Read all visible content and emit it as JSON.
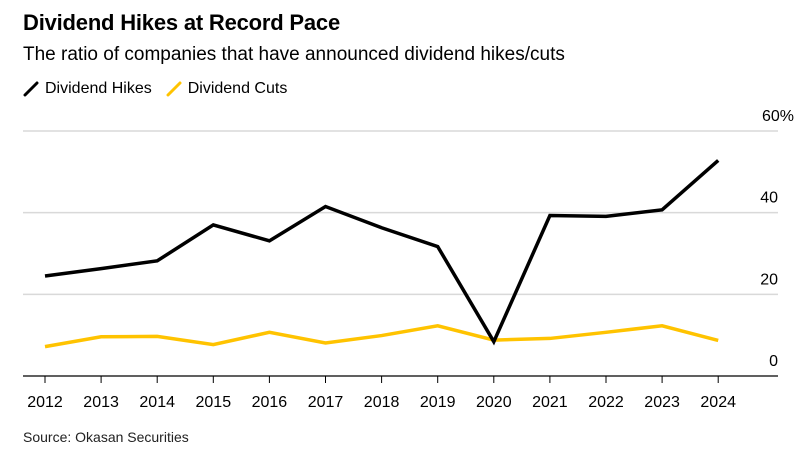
{
  "title": "Dividend Hikes at Record Pace",
  "subtitle": "The ratio of companies that have announced dividend hikes/cuts",
  "source": "Source: Okasan Securities",
  "colors": {
    "hikes": "#000000",
    "cuts": "#ffc300",
    "grid": "#d9d9d9",
    "axis": "#000000"
  },
  "chart_data": {
    "type": "line",
    "title": "Dividend Hikes at Record Pace",
    "subtitle": "The ratio of companies that have announced dividend hikes/cuts",
    "xlabel": "",
    "ylabel": "",
    "categories": [
      "2012",
      "2013",
      "2014",
      "2015",
      "2016",
      "2017",
      "2018",
      "2019",
      "2020",
      "2021",
      "2022",
      "2023",
      "2024"
    ],
    "series": [
      {
        "name": "Dividend Hikes",
        "color": "#000000",
        "values": [
          24.5,
          26.3,
          28.2,
          37.0,
          33.1,
          41.5,
          36.3,
          31.7,
          8.4,
          39.3,
          39.1,
          40.7,
          52.8
        ]
      },
      {
        "name": "Dividend Cuts",
        "color": "#ffc300",
        "values": [
          7.2,
          9.6,
          9.7,
          7.7,
          10.7,
          8.1,
          9.9,
          12.3,
          8.8,
          9.2,
          10.7,
          12.3,
          8.7
        ]
      }
    ],
    "ylim": [
      0,
      60
    ],
    "yticks": [
      0,
      20,
      40,
      60
    ],
    "ytick_labels": [
      "0",
      "20",
      "40",
      "60%"
    ],
    "grid": true,
    "y_axis_side": "right",
    "legend_position": "top-left"
  }
}
